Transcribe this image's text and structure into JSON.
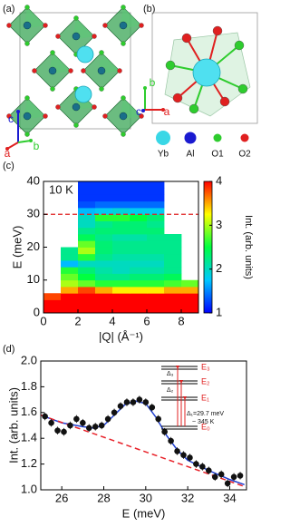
{
  "panels": {
    "a": {
      "label": "(a)",
      "axes": [
        "c",
        "a",
        "b"
      ]
    },
    "b": {
      "label": "(b)",
      "axes": [
        "b",
        "c",
        "a"
      ],
      "legend": [
        {
          "label": "Yb",
          "color": "#39d7e6"
        },
        {
          "label": "Al",
          "color": "#1a1ad0"
        },
        {
          "label": "O1",
          "color": "#2ecc2e"
        },
        {
          "label": "O2",
          "color": "#e02020"
        }
      ]
    }
  },
  "chart_data": [
    {
      "type": "heatmap",
      "panel_label": "(c)",
      "annotation": "10 K",
      "xlabel": "|Q| (Å⁻¹)",
      "ylabel": "E (meV)",
      "colorbar_label": "Int. (arb. units)",
      "xlim": [
        0,
        9
      ],
      "ylim": [
        0,
        40
      ],
      "xticks": [
        0,
        2,
        4,
        6,
        8
      ],
      "yticks": [
        0,
        10,
        20,
        30,
        40
      ],
      "clim": [
        1,
        4
      ],
      "cticks": [
        1,
        2,
        3,
        4
      ],
      "colormap": [
        "#0000ff",
        "#00c8ff",
        "#00ff40",
        "#ffff00",
        "#ff0000"
      ],
      "reference_line": {
        "y": 30,
        "color": "#e02020"
      },
      "x_bins": [
        0,
        1,
        2,
        3,
        4,
        5,
        6,
        7,
        8,
        9
      ],
      "y_bins": [
        0,
        2,
        4,
        6,
        8,
        10,
        12,
        14,
        16,
        18,
        20,
        22,
        24,
        26,
        28,
        30,
        32,
        34,
        36,
        38,
        40
      ],
      "z": [
        [
          4,
          4,
          4,
          4,
          4,
          4,
          4,
          4,
          4
        ],
        [
          4,
          4,
          4,
          4,
          4,
          4,
          4,
          4,
          4
        ],
        [
          3.8,
          4,
          4,
          4,
          4,
          4,
          4,
          4,
          4
        ],
        [
          null,
          3.5,
          3.8,
          3.5,
          3.3,
          3.3,
          3.3,
          3.5,
          3.5
        ],
        [
          null,
          3,
          2.8,
          2.6,
          2.6,
          2.6,
          2.6,
          2.7,
          2.8
        ],
        [
          null,
          2.8,
          2.5,
          2.2,
          2.2,
          2.3,
          2.3,
          2.4,
          null
        ],
        [
          null,
          2.6,
          2.3,
          2.1,
          2,
          2.1,
          2.1,
          2.2,
          null
        ],
        [
          null,
          1.7,
          2,
          2,
          2,
          2,
          2,
          2.2,
          null
        ],
        [
          null,
          2.2,
          2.6,
          2.2,
          2.1,
          2.1,
          2.1,
          2.2,
          null
        ],
        [
          null,
          2.2,
          3,
          2.3,
          2.2,
          2.2,
          2.2,
          2.2,
          null
        ],
        [
          null,
          null,
          2.8,
          2.3,
          2.2,
          2.2,
          2.2,
          2.2,
          null
        ],
        [
          null,
          null,
          2.4,
          2.2,
          2.1,
          2.1,
          2.2,
          2.2,
          null
        ],
        [
          null,
          null,
          2.2,
          2.3,
          2.3,
          2.3,
          2.3,
          null,
          null
        ],
        [
          null,
          null,
          2,
          2.2,
          2.3,
          2.3,
          2.2,
          null,
          null
        ],
        [
          null,
          null,
          2,
          2.6,
          2.6,
          2.5,
          2.3,
          null,
          null
        ],
        [
          null,
          null,
          1.7,
          1.8,
          1.9,
          1.8,
          1.8,
          null,
          null
        ],
        [
          null,
          null,
          1.3,
          1.4,
          1.4,
          1.4,
          1.4,
          null,
          null
        ],
        [
          null,
          null,
          1.2,
          1.2,
          1.2,
          1.2,
          1.2,
          null,
          null
        ],
        [
          null,
          null,
          1.2,
          1.2,
          1.2,
          1.2,
          1.2,
          null,
          null
        ],
        [
          null,
          null,
          1.2,
          1.2,
          1.2,
          1.2,
          1.2,
          null,
          null
        ]
      ]
    },
    {
      "type": "scatter",
      "panel_label": "(d)",
      "xlabel": "E (meV)",
      "ylabel": "Int. (arb. units)",
      "xlim": [
        25,
        34.8
      ],
      "ylim": [
        1,
        2
      ],
      "xticks": [
        26,
        28,
        30,
        32,
        34
      ],
      "yticks": [
        {
          "value": 1,
          "label": "1.0"
        },
        1.2,
        1.4,
        1.6,
        1.8,
        {
          "value": 2,
          "label": "2.0"
        }
      ],
      "color": "#111111",
      "x": [
        25.2,
        25.5,
        25.8,
        26.1,
        26.4,
        26.7,
        27.0,
        27.3,
        27.6,
        27.9,
        28.2,
        28.5,
        28.8,
        29.1,
        29.4,
        29.7,
        30.0,
        30.3,
        30.6,
        30.9,
        31.2,
        31.5,
        31.8,
        32.1,
        32.4,
        32.7,
        33.0,
        33.3,
        33.6,
        33.9,
        34.2,
        34.5
      ],
      "values": [
        1.57,
        1.52,
        1.46,
        1.45,
        1.5,
        1.55,
        1.52,
        1.48,
        1.49,
        1.5,
        1.55,
        1.6,
        1.65,
        1.68,
        1.68,
        1.7,
        1.68,
        1.64,
        1.55,
        1.45,
        1.38,
        1.3,
        1.27,
        1.25,
        1.2,
        1.18,
        1.15,
        1.1,
        1.12,
        1.05,
        1.1,
        1.11
      ],
      "errors": [
        0.03,
        0.03,
        0.03,
        0.03,
        0.03,
        0.03,
        0.03,
        0.03,
        0.03,
        0.03,
        0.03,
        0.03,
        0.03,
        0.03,
        0.03,
        0.03,
        0.03,
        0.03,
        0.03,
        0.03,
        0.03,
        0.03,
        0.03,
        0.03,
        0.03,
        0.03,
        0.03,
        0.03,
        0.03,
        0.03,
        0.03,
        0.03
      ],
      "lines": [
        {
          "color": "#1f3fd0",
          "dash": false,
          "x": [
            25,
            26,
            27,
            27.5,
            28,
            28.5,
            29,
            29.5,
            30,
            30.5,
            31,
            31.5,
            32,
            33,
            34,
            34.7
          ],
          "values": [
            1.58,
            1.52,
            1.49,
            1.48,
            1.5,
            1.58,
            1.66,
            1.69,
            1.67,
            1.56,
            1.42,
            1.31,
            1.23,
            1.15,
            1.08,
            1.04
          ]
        },
        {
          "color": "#e8222a",
          "dash": true,
          "x": [
            25,
            34.8
          ],
          "values": [
            1.58,
            1.02
          ]
        }
      ],
      "inset": {
        "levels": [
          "E₃",
          "E₂",
          "E₁",
          "E₀"
        ],
        "gaps": [
          "Δ₃",
          "Δ₂"
        ],
        "gap_1": "Δ₁=29.7 meV",
        "temperature": "~ 345 K"
      }
    }
  ]
}
